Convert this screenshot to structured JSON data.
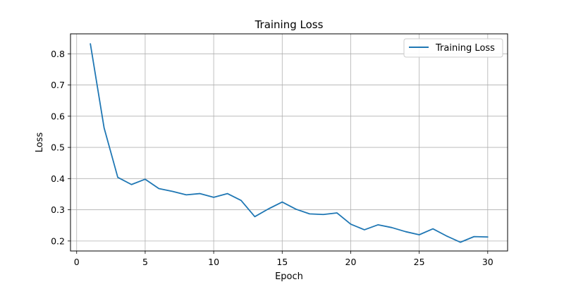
{
  "chart_data": {
    "type": "line",
    "title": "Training Loss",
    "xlabel": "Epoch",
    "ylabel": "Loss",
    "xlim": [
      -0.45,
      31.45
    ],
    "ylim": [
      0.168,
      0.864
    ],
    "xticks": [
      0,
      5,
      10,
      15,
      20,
      25,
      30
    ],
    "yticks": [
      0.2,
      0.3,
      0.4,
      0.5,
      0.6,
      0.7,
      0.8
    ],
    "xtick_labels": [
      "0",
      "5",
      "10",
      "15",
      "20",
      "25",
      "30"
    ],
    "ytick_labels": [
      "0.2",
      "0.3",
      "0.4",
      "0.5",
      "0.6",
      "0.7",
      "0.8"
    ],
    "grid": true,
    "legend_position": "top-right",
    "series": [
      {
        "name": "Training Loss",
        "color": "#1f77b4",
        "x": [
          1,
          2,
          3,
          4,
          5,
          6,
          7,
          8,
          9,
          10,
          11,
          12,
          13,
          14,
          15,
          16,
          17,
          18,
          19,
          20,
          21,
          22,
          23,
          24,
          25,
          26,
          27,
          28,
          29,
          30
        ],
        "y": [
          0.832,
          0.563,
          0.404,
          0.381,
          0.398,
          0.368,
          0.359,
          0.348,
          0.352,
          0.34,
          0.352,
          0.33,
          0.278,
          0.303,
          0.325,
          0.302,
          0.287,
          0.285,
          0.29,
          0.254,
          0.236,
          0.252,
          0.243,
          0.23,
          0.22,
          0.239,
          0.216,
          0.196,
          0.214,
          0.213
        ]
      }
    ]
  }
}
